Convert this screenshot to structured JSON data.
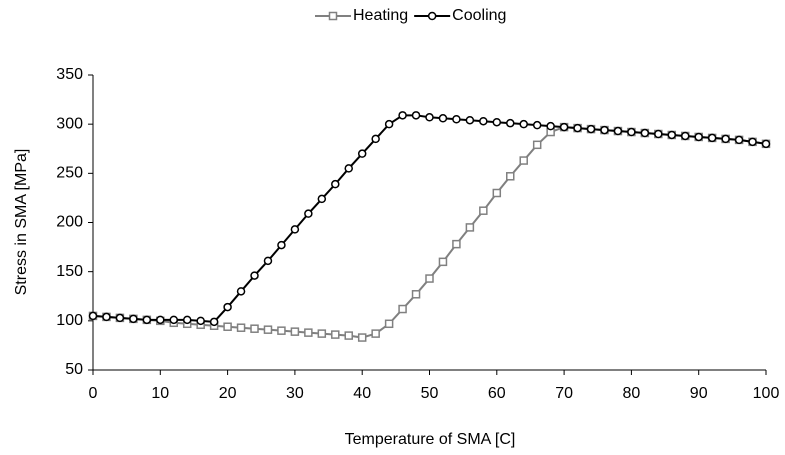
{
  "chart_data": {
    "type": "line",
    "xlabel": "Temperature of SMA [C]",
    "ylabel": "Stress in SMA [MPa]",
    "x": [
      0,
      2,
      4,
      6,
      8,
      10,
      12,
      14,
      16,
      18,
      20,
      22,
      24,
      26,
      28,
      30,
      32,
      34,
      36,
      38,
      40,
      42,
      44,
      46,
      48,
      50,
      52,
      54,
      56,
      58,
      60,
      62,
      64,
      66,
      68,
      70,
      72,
      74,
      76,
      78,
      80,
      82,
      84,
      86,
      88,
      90,
      92,
      94,
      96,
      98,
      100
    ],
    "series": [
      {
        "name": "Heating",
        "color": "#808080",
        "marker": "square",
        "values": [
          105,
          104,
          103,
          102,
          101,
          100,
          98,
          97,
          96,
          95,
          94,
          93,
          92,
          91,
          90,
          89,
          88,
          87,
          86,
          85,
          83,
          87,
          97,
          112,
          127,
          143,
          160,
          178,
          195,
          212,
          230,
          247,
          263,
          279,
          292,
          297,
          296,
          295,
          294,
          293,
          292,
          291,
          290,
          289,
          288,
          287,
          286,
          285,
          284,
          282,
          280
        ]
      },
      {
        "name": "Cooling",
        "color": "#000000",
        "marker": "circle",
        "values": [
          105,
          104,
          103,
          102,
          101,
          101,
          101,
          101,
          100,
          99,
          114,
          130,
          146,
          161,
          177,
          193,
          209,
          224,
          239,
          255,
          270,
          285,
          300,
          309,
          309,
          307,
          306,
          305,
          304,
          303,
          302,
          301,
          300,
          299,
          298,
          297,
          296,
          295,
          294,
          293,
          292,
          291,
          290,
          289,
          288,
          287,
          286,
          285,
          284,
          282,
          280
        ]
      }
    ],
    "xlim": [
      0,
      100
    ],
    "xticks": [
      0,
      10,
      20,
      30,
      40,
      50,
      60,
      70,
      80,
      90,
      100
    ],
    "ylim": [
      50,
      350
    ],
    "yticks": [
      50,
      100,
      150,
      200,
      250,
      300,
      350
    ],
    "grid": false,
    "legend": "top"
  }
}
